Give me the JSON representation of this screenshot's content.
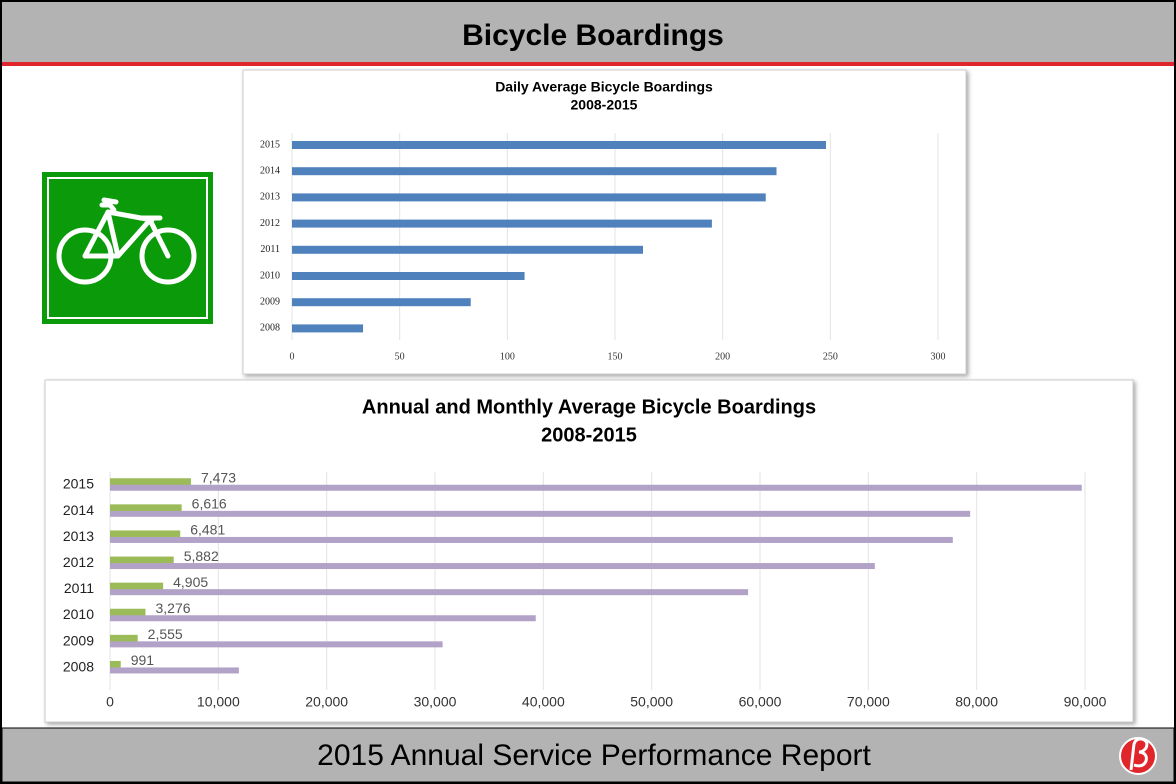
{
  "header": {
    "title": "Bicycle Boardings"
  },
  "footer": {
    "text": "2015 Annual Service Performance Report"
  },
  "chart_data": [
    {
      "type": "hbar",
      "title": "Daily Average Bicycle Boardings",
      "subtitle": "2008-2015",
      "categories": [
        "2015",
        "2014",
        "2013",
        "2012",
        "2011",
        "2010",
        "2009",
        "2008"
      ],
      "values": [
        248,
        225,
        220,
        195,
        163,
        108,
        83,
        33
      ],
      "color": "#4f81bd",
      "xlim": [
        0,
        300
      ],
      "xticks": [
        0,
        50,
        100,
        150,
        200,
        250,
        300
      ],
      "grid": true
    },
    {
      "type": "hbar",
      "title": "Annual and Monthly Average Bicycle Boardings",
      "subtitle": "2008-2015",
      "categories": [
        "2015",
        "2014",
        "2013",
        "2012",
        "2011",
        "2010",
        "2009",
        "2008"
      ],
      "series": [
        {
          "color": "#9bbb59",
          "values": [
            7473,
            6616,
            6481,
            5882,
            4905,
            3276,
            2555,
            991
          ],
          "value_labels": [
            "7,473",
            "6,616",
            "6,481",
            "5,882",
            "4,905",
            "3,276",
            "2,555",
            "991"
          ]
        },
        {
          "color": "#b3a2c7",
          "values": [
            89700,
            79400,
            77800,
            70600,
            58900,
            39300,
            30700,
            11900
          ]
        }
      ],
      "xlim": [
        0,
        90000
      ],
      "xticks": [
        0,
        {
          "value": 10000,
          "label": "10,000"
        },
        {
          "value": 20000,
          "label": "20,000"
        },
        {
          "value": 30000,
          "label": "30,000"
        },
        {
          "value": 40000,
          "label": "40,000"
        },
        {
          "value": 50000,
          "label": "50,000"
        },
        {
          "value": 60000,
          "label": "60,000"
        },
        {
          "value": 70000,
          "label": "70,000"
        },
        {
          "value": 80000,
          "label": "80,000"
        },
        {
          "value": 90000,
          "label": "90,000"
        }
      ],
      "grid": true
    }
  ]
}
